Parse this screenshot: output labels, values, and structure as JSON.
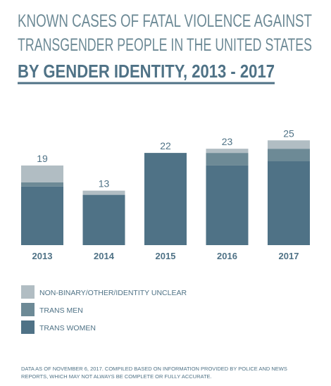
{
  "chart_data": {
    "type": "stacked-bar",
    "title": [
      "KNOWN CASES OF FATAL VIOLENCE AGAINST",
      "TRANSGENDER PEOPLE IN THE UNITED STATES"
    ],
    "subtitle": "BY GENDER IDENTITY, 2013 - 2017",
    "categories": [
      "2013",
      "2014",
      "2015",
      "2016",
      "2017"
    ],
    "totals": [
      19,
      13,
      22,
      23,
      25
    ],
    "series": [
      {
        "name": "NON-BINARY/OTHER/IDENTITY UNCLEAR",
        "color": "#b1bdc3",
        "values": [
          4,
          1,
          0,
          1,
          2
        ]
      },
      {
        "name": "TRANS MEN",
        "color": "#6d8a96",
        "values": [
          1,
          0,
          0,
          3,
          3
        ]
      },
      {
        "name": "TRANS WOMEN",
        "color": "#4f7286",
        "values": [
          14,
          12,
          22,
          19,
          20
        ]
      }
    ],
    "note": [
      "DATA AS OF NOVEMBER 6, 2017. COMPILED BASED ON INFORMATION PROVIDED BY POLICE AND NEWS",
      "REPORTS, WHICH MAY NOT ALWAYS BE COMPLETE OR FULLY ACCURATE."
    ]
  }
}
